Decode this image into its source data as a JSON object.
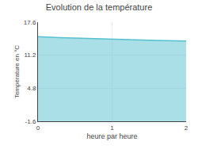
{
  "chart_data": {
    "type": "area",
    "title": "Evolution de la température",
    "xlabel": "heure par heure",
    "ylabel": "Température en °C",
    "x": [
      0.0,
      0.05,
      0.1,
      0.2,
      0.3,
      0.4,
      0.5,
      0.6,
      0.7,
      0.8,
      0.9,
      1.0,
      1.05,
      1.1,
      1.2,
      1.3,
      1.4,
      1.5,
      1.6,
      1.7,
      1.8,
      1.9,
      2.0
    ],
    "series": [
      {
        "color": "#55c0d0",
        "values": [
          14.8,
          14.75,
          14.7,
          14.65,
          14.6,
          14.55,
          14.5,
          14.47,
          14.44,
          14.41,
          14.38,
          14.35,
          14.32,
          14.28,
          14.24,
          14.2,
          14.16,
          14.12,
          14.08,
          14.05,
          14.02,
          13.99,
          13.95
        ]
      }
    ],
    "xlim": [
      0,
      2
    ],
    "xticks": [
      0,
      1,
      2
    ],
    "ylim": [
      -1.6,
      17.6
    ],
    "yticks": [
      -1.6,
      4.8,
      11.2,
      17.6
    ],
    "grid": true
  }
}
